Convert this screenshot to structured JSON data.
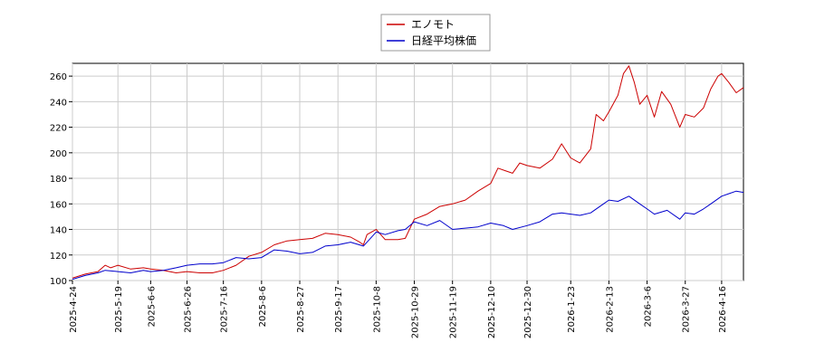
{
  "chart_data": {
    "type": "line",
    "grid": true,
    "legend_position": "top-center",
    "ylim": [
      100,
      270
    ],
    "y_ticks": [
      100,
      120,
      140,
      160,
      180,
      200,
      220,
      240,
      260
    ],
    "x_start": "2025-04-24",
    "x_end": "2026-04-28",
    "x_ticks": [
      "2025-4-24",
      "2025-5-19",
      "2025-6-6",
      "2025-6-26",
      "2025-7-16",
      "2025-8-6",
      "2025-8-27",
      "2025-9-17",
      "2025-10-8",
      "2025-10-29",
      "2025-11-19",
      "2025-12-10",
      "2025-12-30",
      "2026-1-23",
      "2026-2-13",
      "2026-3-6",
      "2026-3-27",
      "2026-4-16"
    ],
    "series": [
      {
        "name": "エノモト",
        "color": "#cc0000",
        "points": [
          [
            "2025-04-24",
            102
          ],
          [
            "2025-05-01",
            105
          ],
          [
            "2025-05-08",
            107
          ],
          [
            "2025-05-12",
            112
          ],
          [
            "2025-05-15",
            110
          ],
          [
            "2025-05-19",
            112
          ],
          [
            "2025-05-26",
            109
          ],
          [
            "2025-06-02",
            110
          ],
          [
            "2025-06-06",
            109
          ],
          [
            "2025-06-13",
            108
          ],
          [
            "2025-06-20",
            106
          ],
          [
            "2025-06-26",
            107
          ],
          [
            "2025-07-03",
            106
          ],
          [
            "2025-07-10",
            106
          ],
          [
            "2025-07-16",
            108
          ],
          [
            "2025-07-23",
            112
          ],
          [
            "2025-07-30",
            119
          ],
          [
            "2025-08-06",
            122
          ],
          [
            "2025-08-13",
            128
          ],
          [
            "2025-08-20",
            131
          ],
          [
            "2025-08-27",
            132
          ],
          [
            "2025-09-03",
            133
          ],
          [
            "2025-09-10",
            137
          ],
          [
            "2025-09-17",
            136
          ],
          [
            "2025-09-24",
            134
          ],
          [
            "2025-09-29",
            130
          ],
          [
            "2025-10-01",
            128
          ],
          [
            "2025-10-03",
            136
          ],
          [
            "2025-10-08",
            140
          ],
          [
            "2025-10-13",
            132
          ],
          [
            "2025-10-20",
            132
          ],
          [
            "2025-10-24",
            133
          ],
          [
            "2025-10-29",
            148
          ],
          [
            "2025-11-05",
            152
          ],
          [
            "2025-11-12",
            158
          ],
          [
            "2025-11-19",
            160
          ],
          [
            "2025-11-26",
            163
          ],
          [
            "2025-12-03",
            170
          ],
          [
            "2025-12-10",
            176
          ],
          [
            "2025-12-14",
            188
          ],
          [
            "2025-12-18",
            186
          ],
          [
            "2025-12-22",
            184
          ],
          [
            "2025-12-26",
            192
          ],
          [
            "2025-12-30",
            190
          ],
          [
            "2026-01-06",
            188
          ],
          [
            "2026-01-13",
            195
          ],
          [
            "2026-01-18",
            207
          ],
          [
            "2026-01-23",
            196
          ],
          [
            "2026-01-28",
            192
          ],
          [
            "2026-02-03",
            203
          ],
          [
            "2026-02-06",
            230
          ],
          [
            "2026-02-10",
            225
          ],
          [
            "2026-02-13",
            232
          ],
          [
            "2026-02-18",
            245
          ],
          [
            "2026-02-21",
            262
          ],
          [
            "2026-02-24",
            268
          ],
          [
            "2026-02-27",
            255
          ],
          [
            "2026-03-02",
            238
          ],
          [
            "2026-03-06",
            245
          ],
          [
            "2026-03-10",
            228
          ],
          [
            "2026-03-14",
            248
          ],
          [
            "2026-03-19",
            238
          ],
          [
            "2026-03-24",
            220
          ],
          [
            "2026-03-27",
            230
          ],
          [
            "2026-04-01",
            228
          ],
          [
            "2026-04-06",
            235
          ],
          [
            "2026-04-10",
            250
          ],
          [
            "2026-04-14",
            260
          ],
          [
            "2026-04-16",
            262
          ],
          [
            "2026-04-20",
            255
          ],
          [
            "2026-04-24",
            247
          ],
          [
            "2026-04-28",
            251
          ]
        ]
      },
      {
        "name": "日経平均株価",
        "color": "#0000cc",
        "points": [
          [
            "2025-04-24",
            101
          ],
          [
            "2025-05-01",
            104
          ],
          [
            "2025-05-08",
            106
          ],
          [
            "2025-05-12",
            108
          ],
          [
            "2025-05-19",
            107
          ],
          [
            "2025-05-26",
            106
          ],
          [
            "2025-06-02",
            108
          ],
          [
            "2025-06-06",
            107
          ],
          [
            "2025-06-13",
            108
          ],
          [
            "2025-06-20",
            110
          ],
          [
            "2025-06-26",
            112
          ],
          [
            "2025-07-03",
            113
          ],
          [
            "2025-07-10",
            113
          ],
          [
            "2025-07-16",
            114
          ],
          [
            "2025-07-23",
            118
          ],
          [
            "2025-07-30",
            117
          ],
          [
            "2025-08-06",
            118
          ],
          [
            "2025-08-13",
            124
          ],
          [
            "2025-08-20",
            123
          ],
          [
            "2025-08-27",
            121
          ],
          [
            "2025-09-03",
            122
          ],
          [
            "2025-09-10",
            127
          ],
          [
            "2025-09-17",
            128
          ],
          [
            "2025-09-24",
            130
          ],
          [
            "2025-10-01",
            127
          ],
          [
            "2025-10-08",
            138
          ],
          [
            "2025-10-13",
            136
          ],
          [
            "2025-10-20",
            139
          ],
          [
            "2025-10-24",
            140
          ],
          [
            "2025-10-29",
            146
          ],
          [
            "2025-11-05",
            143
          ],
          [
            "2025-11-12",
            147
          ],
          [
            "2025-11-19",
            140
          ],
          [
            "2025-11-26",
            141
          ],
          [
            "2025-12-03",
            142
          ],
          [
            "2025-12-10",
            145
          ],
          [
            "2025-12-17",
            143
          ],
          [
            "2025-12-22",
            140
          ],
          [
            "2025-12-30",
            143
          ],
          [
            "2026-01-06",
            146
          ],
          [
            "2026-01-13",
            152
          ],
          [
            "2026-01-18",
            153
          ],
          [
            "2026-01-23",
            152
          ],
          [
            "2026-01-28",
            151
          ],
          [
            "2026-02-03",
            153
          ],
          [
            "2026-02-10",
            160
          ],
          [
            "2026-02-13",
            163
          ],
          [
            "2026-02-18",
            162
          ],
          [
            "2026-02-24",
            166
          ],
          [
            "2026-03-02",
            160
          ],
          [
            "2026-03-06",
            156
          ],
          [
            "2026-03-10",
            152
          ],
          [
            "2026-03-17",
            155
          ],
          [
            "2026-03-24",
            148
          ],
          [
            "2026-03-27",
            153
          ],
          [
            "2026-04-01",
            152
          ],
          [
            "2026-04-06",
            156
          ],
          [
            "2026-04-10",
            160
          ],
          [
            "2026-04-16",
            166
          ],
          [
            "2026-04-20",
            168
          ],
          [
            "2026-04-24",
            170
          ],
          [
            "2026-04-28",
            169
          ]
        ]
      }
    ]
  }
}
